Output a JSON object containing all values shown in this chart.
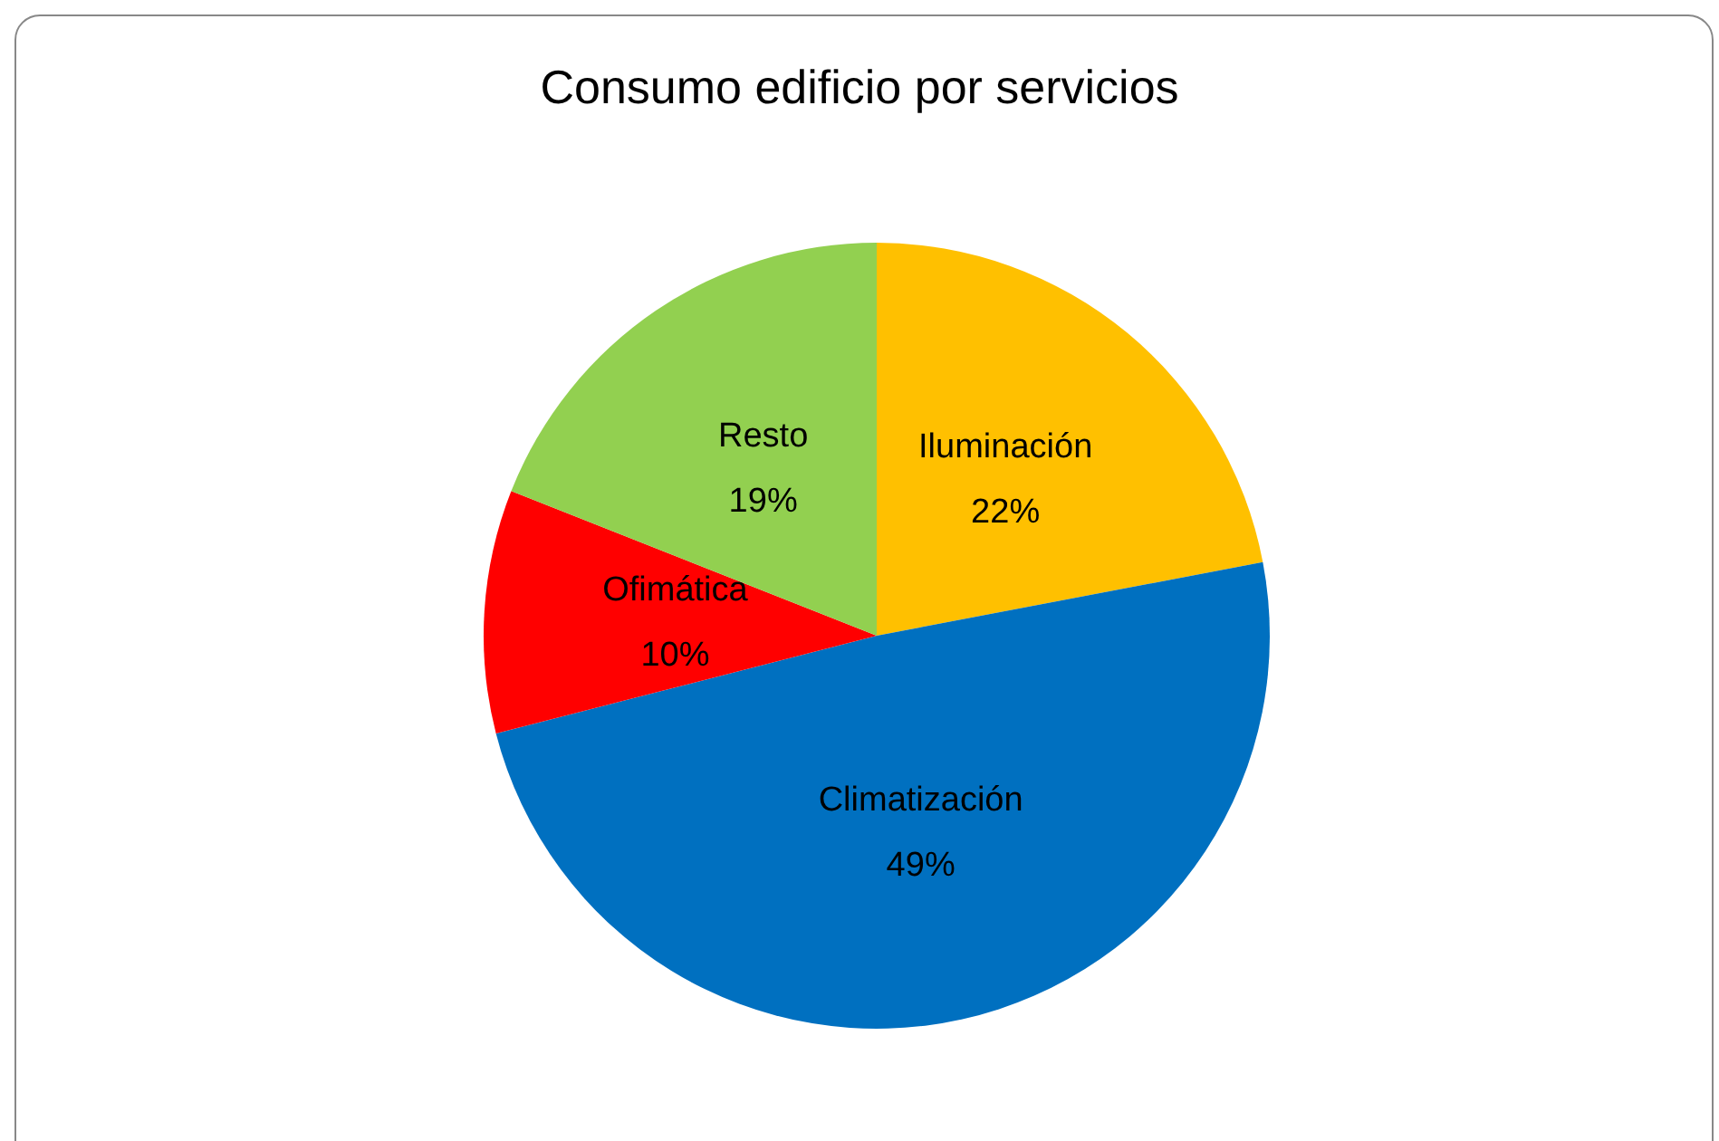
{
  "chart_data": {
    "type": "pie",
    "title": "Consumo edificio por servicios",
    "categories": [
      "Iluminación",
      "Climatización",
      "Ofimática",
      "Resto"
    ],
    "values": [
      22,
      49,
      10,
      19
    ],
    "value_labels": [
      "22%",
      "49%",
      "10%",
      "19%"
    ],
    "colors": [
      "#ffc000",
      "#0070c0",
      "#ff0000",
      "#92d050"
    ],
    "legend": false
  }
}
